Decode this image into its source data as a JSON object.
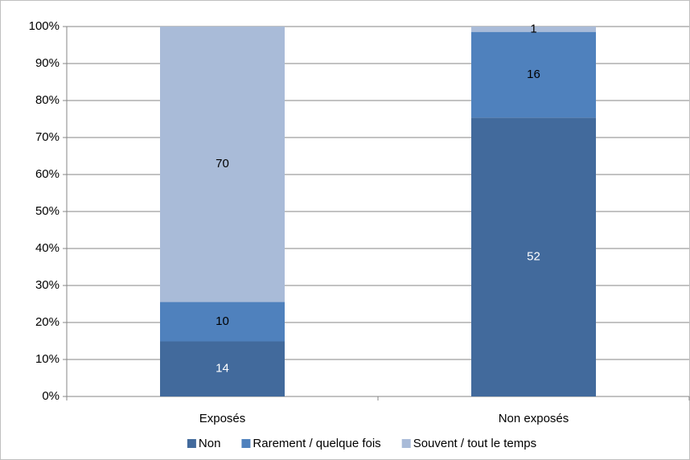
{
  "chart_data": {
    "type": "bar",
    "stacking": "percent",
    "categories": [
      "Exposés",
      "Non exposés"
    ],
    "series": [
      {
        "name": "Non",
        "color": "#426a9c",
        "values": [
          14,
          52
        ]
      },
      {
        "name": "Rarement / quelque fois",
        "color": "#4f81bd",
        "values": [
          10,
          16
        ]
      },
      {
        "name": "Souvent / tout le temps",
        "color": "#a9bbd8",
        "values": [
          70,
          1
        ]
      }
    ],
    "ylim": [
      0,
      100
    ],
    "yticks": [
      {
        "value": 0,
        "label": "0%"
      },
      {
        "value": 10,
        "label": "10%"
      },
      {
        "value": 20,
        "label": "20%"
      },
      {
        "value": 30,
        "label": "30%"
      },
      {
        "value": 40,
        "label": "40%"
      },
      {
        "value": 50,
        "label": "50%"
      },
      {
        "value": 60,
        "label": "60%"
      },
      {
        "value": 70,
        "label": "70%"
      },
      {
        "value": 80,
        "label": "80%"
      },
      {
        "value": 90,
        "label": "90%"
      },
      {
        "value": 100,
        "label": "100%"
      }
    ],
    "grid": true,
    "legend": "bottom"
  }
}
